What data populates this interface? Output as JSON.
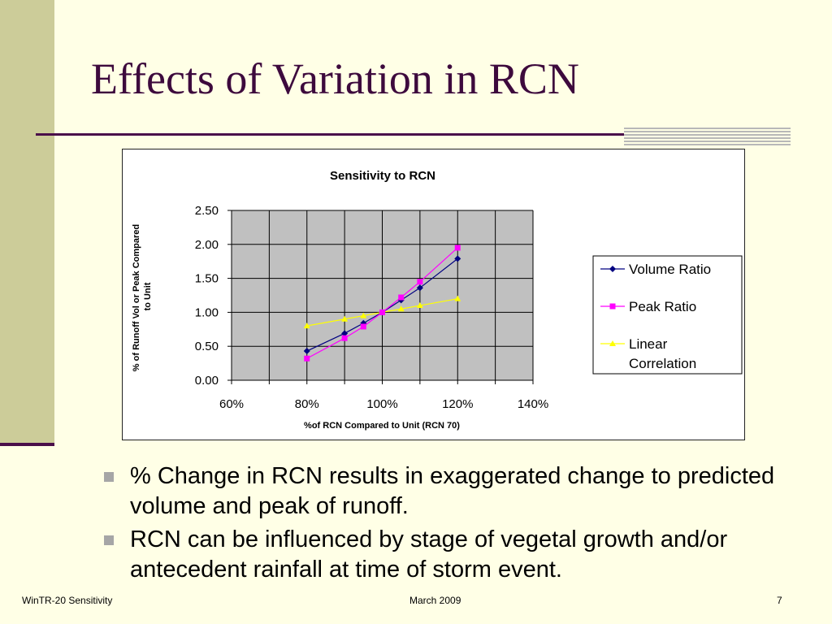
{
  "slide": {
    "title": "Effects of Variation in RCN",
    "bullets": [
      "% Change in RCN results in exaggerated change to predicted volume and peak of runoff.",
      "RCN can be influenced by stage of vegetal growth and/or antecedent rainfall at time of storm event."
    ],
    "footer": {
      "left": "WinTR-20 Sensitivity",
      "center": "March 2009",
      "right": "7"
    },
    "colors": {
      "background": "#FFFFE6",
      "accent": "#4A0E4A",
      "side_bar": "#CCCC99",
      "bullet": "#A6A6A6"
    }
  },
  "chart_data": {
    "type": "line",
    "title": "Sensitivity to RCN",
    "xlabel": "%of RCN Compared to Unit (RCN 70)",
    "ylabel": "% of Runoff Vol or Peak Compared to Unit",
    "xlim": [
      0.6,
      1.4
    ],
    "ylim": [
      0,
      2.5
    ],
    "x_ticks": [
      0.6,
      0.8,
      1.0,
      1.2,
      1.4
    ],
    "x_tick_labels": [
      "60%",
      "80%",
      "100%",
      "120%",
      "140%"
    ],
    "y_ticks": [
      0,
      0.5,
      1.0,
      1.5,
      2.0,
      2.5
    ],
    "y_tick_labels": [
      "0.00",
      "0.50",
      "1.00",
      "1.50",
      "2.00",
      "2.50"
    ],
    "grid": true,
    "legend_position": "right",
    "series": [
      {
        "name": "Volume Ratio",
        "color": "#000080",
        "marker": "diamond",
        "x": [
          0.8,
          0.9,
          0.95,
          1.0,
          1.05,
          1.1,
          1.2
        ],
        "y": [
          0.43,
          0.69,
          0.84,
          1.0,
          1.18,
          1.36,
          1.79
        ]
      },
      {
        "name": "Peak Ratio",
        "color": "#FF00FF",
        "marker": "square",
        "x": [
          0.8,
          0.9,
          0.95,
          1.0,
          1.05,
          1.1,
          1.2
        ],
        "y": [
          0.32,
          0.62,
          0.79,
          1.0,
          1.22,
          1.45,
          1.95
        ]
      },
      {
        "name": "Linear Correlation",
        "color": "#FFFF00",
        "marker": "triangle",
        "x": [
          0.8,
          0.9,
          0.95,
          1.0,
          1.05,
          1.1,
          1.2
        ],
        "y": [
          0.8,
          0.9,
          0.95,
          1.0,
          1.05,
          1.1,
          1.2
        ]
      }
    ]
  }
}
